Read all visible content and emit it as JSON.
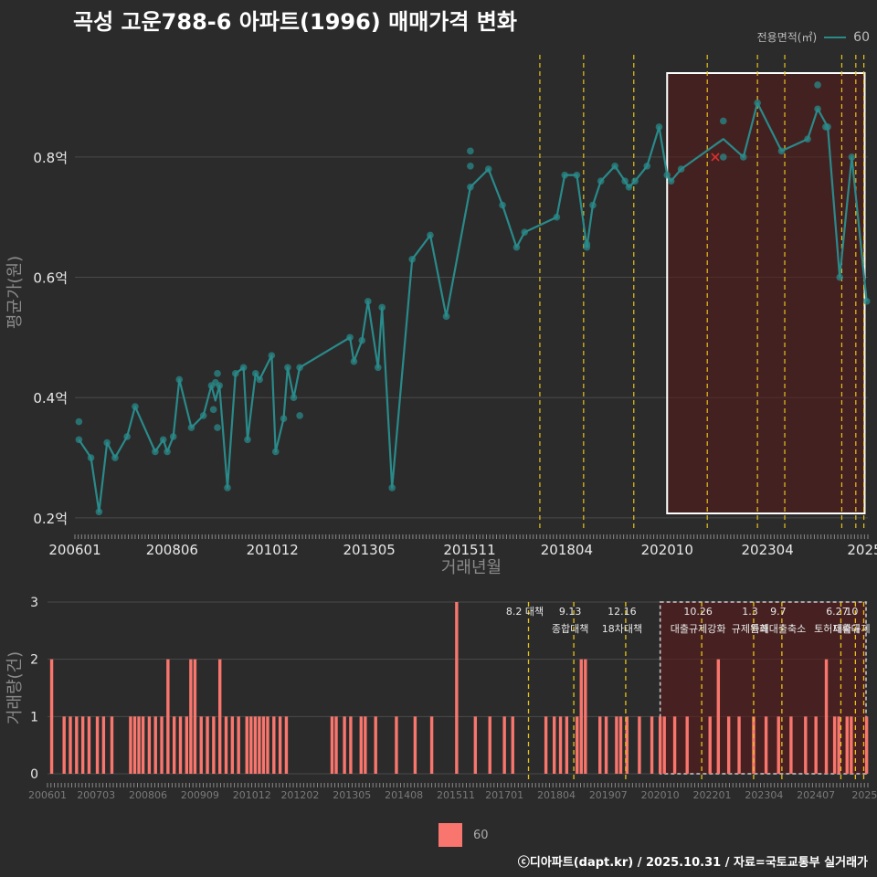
{
  "title": "곡성 고운788-6 아파트(1996) 매매가격 변화",
  "legend": {
    "title": "전용면적(㎡)",
    "items": [
      "60"
    ]
  },
  "caption": "ⓒ디아파트(dapt.kr) / 2025.10.31 / 자료=국토교통부 실거래가",
  "colors": {
    "line": "#2a8a8a",
    "bar": "#f8766d",
    "policy": "#e8c21a",
    "highlight": "#5a1a1a"
  },
  "chart_data": [
    {
      "type": "line",
      "name": "price",
      "xlabel": "거래년월",
      "ylabel": "평균가(원)",
      "ylim": [
        0.18,
        0.97
      ],
      "yticks": [
        0.2,
        0.4,
        0.6,
        0.8
      ],
      "ytick_labels": [
        "0.2억",
        "0.4억",
        "0.6억",
        "0.8억"
      ],
      "xlim": [
        2006.0,
        2025.75
      ],
      "xticks": [
        2006.0,
        2008.42,
        2010.92,
        2013.33,
        2015.83,
        2018.25,
        2020.75,
        2023.25,
        2025.67
      ],
      "xtick_labels": [
        "200601",
        "200806",
        "201012",
        "201305",
        "201511",
        "201804",
        "202010",
        "202304",
        "2025"
      ],
      "policy_lines": [
        2017.58,
        2018.67,
        2019.92,
        2021.75,
        2023.0,
        2023.68,
        2025.1,
        2025.45,
        2025.65
      ],
      "highlight_range": [
        2020.75,
        2025.67
      ],
      "series": [
        {
          "name": "60",
          "x": [
            2006.1,
            2006.4,
            2006.6,
            2006.8,
            2007.0,
            2007.3,
            2007.5,
            2008.0,
            2008.2,
            2008.3,
            2008.45,
            2008.6,
            2008.9,
            2009.2,
            2009.4,
            2009.5,
            2009.6,
            2009.8,
            2010.0,
            2010.2,
            2010.3,
            2010.5,
            2010.6,
            2010.9,
            2011.0,
            2011.2,
            2011.3,
            2011.45,
            2011.6,
            2012.85,
            2012.95,
            2013.15,
            2013.3,
            2013.55,
            2013.65,
            2013.9,
            2014.4,
            2014.85,
            2015.25,
            2015.85,
            2016.3,
            2016.65,
            2017.0,
            2017.2,
            2018.0,
            2018.2,
            2018.5,
            2018.75,
            2018.9,
            2019.1,
            2019.45,
            2019.7,
            2019.8,
            2019.95,
            2020.25,
            2020.55,
            2020.75,
            2020.85,
            2021.1,
            2022.15,
            2022.65,
            2023.0,
            2023.6,
            2024.25,
            2024.5,
            2024.75,
            2025.05,
            2025.35,
            2025.72
          ],
          "y": [
            0.33,
            0.3,
            0.21,
            0.325,
            0.3,
            0.335,
            0.385,
            0.31,
            0.33,
            0.31,
            0.335,
            0.43,
            0.35,
            0.37,
            0.42,
            0.395,
            0.42,
            0.25,
            0.44,
            0.45,
            0.33,
            0.44,
            0.43,
            0.47,
            0.31,
            0.365,
            0.45,
            0.4,
            0.45,
            0.5,
            0.46,
            0.495,
            0.56,
            0.45,
            0.55,
            0.25,
            0.63,
            0.67,
            0.535,
            0.75,
            0.78,
            0.72,
            0.65,
            0.675,
            0.7,
            0.77,
            0.77,
            0.65,
            0.72,
            0.76,
            0.785,
            0.76,
            0.75,
            0.76,
            0.785,
            0.85,
            0.77,
            0.76,
            0.78,
            0.83,
            0.8,
            0.89,
            0.81,
            0.83,
            0.88,
            0.85,
            0.6,
            0.8,
            0.56
          ]
        }
      ],
      "scatter": {
        "x": [
          2006.1,
          2006.1,
          2006.4,
          2006.6,
          2006.8,
          2007.0,
          2007.3,
          2007.5,
          2008.0,
          2008.2,
          2008.3,
          2008.45,
          2008.6,
          2008.9,
          2009.2,
          2009.4,
          2009.45,
          2009.5,
          2009.55,
          2009.55,
          2009.6,
          2009.8,
          2010.0,
          2010.2,
          2010.3,
          2010.5,
          2010.6,
          2010.9,
          2011.0,
          2011.2,
          2011.3,
          2011.45,
          2011.6,
          2011.6,
          2012.85,
          2012.95,
          2013.15,
          2013.3,
          2013.55,
          2013.65,
          2013.9,
          2014.4,
          2014.85,
          2015.25,
          2015.85,
          2015.85,
          2015.85,
          2016.3,
          2016.65,
          2017.0,
          2017.2,
          2018.0,
          2018.2,
          2018.5,
          2018.75,
          2018.75,
          2018.9,
          2019.1,
          2019.45,
          2019.7,
          2019.8,
          2019.95,
          2020.25,
          2020.55,
          2020.75,
          2020.85,
          2021.1,
          2022.15,
          2022.15,
          2022.65,
          2023.0,
          2023.6,
          2024.25,
          2024.5,
          2024.5,
          2024.7,
          2024.75,
          2025.05,
          2025.35,
          2025.72
        ],
        "y": [
          0.33,
          0.36,
          0.3,
          0.21,
          0.325,
          0.3,
          0.335,
          0.385,
          0.31,
          0.33,
          0.31,
          0.335,
          0.43,
          0.35,
          0.37,
          0.42,
          0.38,
          0.425,
          0.44,
          0.35,
          0.42,
          0.25,
          0.44,
          0.45,
          0.33,
          0.44,
          0.43,
          0.47,
          0.31,
          0.365,
          0.45,
          0.4,
          0.45,
          0.37,
          0.5,
          0.46,
          0.495,
          0.56,
          0.45,
          0.55,
          0.25,
          0.63,
          0.67,
          0.535,
          0.75,
          0.81,
          0.785,
          0.78,
          0.72,
          0.65,
          0.675,
          0.7,
          0.77,
          0.77,
          0.65,
          0.655,
          0.72,
          0.76,
          0.785,
          0.76,
          0.75,
          0.76,
          0.785,
          0.85,
          0.77,
          0.76,
          0.78,
          0.8,
          0.86,
          0.8,
          0.89,
          0.81,
          0.83,
          0.88,
          0.92,
          0.85,
          0.85,
          0.6,
          0.8,
          0.56
        ]
      },
      "marker_x": {
        "x": 2021.95,
        "y": 0.8
      }
    },
    {
      "type": "bar",
      "name": "volume",
      "xlabel": "",
      "ylabel": "거래량(건)",
      "ylim": [
        0,
        3
      ],
      "yticks": [
        0,
        1,
        2,
        3
      ],
      "ytick_labels": [
        "0",
        "1",
        "2",
        "3"
      ],
      "xlim": [
        2006.0,
        2025.75
      ],
      "xticks": [
        2006.0,
        2007.17,
        2008.42,
        2009.67,
        2010.92,
        2012.08,
        2013.33,
        2014.58,
        2015.83,
        2017.0,
        2018.25,
        2019.5,
        2020.75,
        2022.0,
        2023.25,
        2024.5,
        2025.67
      ],
      "xtick_labels": [
        "200601",
        "200703",
        "200806",
        "200909",
        "201012",
        "201202",
        "201305",
        "201408",
        "201511",
        "201701",
        "201804",
        "201907",
        "202010",
        "202201",
        "202304",
        "202407",
        "2025"
      ],
      "highlight_range": [
        2020.75,
        2025.75
      ],
      "policies": [
        {
          "x": 2017.58,
          "line1": "8.2 대책",
          "line2": ""
        },
        {
          "x": 2018.67,
          "line1": "9.13",
          "line2": "종합대책"
        },
        {
          "x": 2019.92,
          "line1": "12.16",
          "line2": "18차대책"
        },
        {
          "x": 2021.75,
          "line1": "10.26",
          "line2": "대출규제강화"
        },
        {
          "x": 2023.0,
          "line1": "1.3",
          "line2": "규제완화"
        },
        {
          "x": 2023.68,
          "line1": "9.7",
          "line2": "특례대출축소"
        },
        {
          "x": 2025.1,
          "line1": "6.27",
          "line2": "토허제확대"
        },
        {
          "x": 2025.45,
          "line1": "10",
          "line2": "대출규제"
        },
        {
          "x": 2025.65,
          "line1": "",
          "line2": ""
        }
      ],
      "x": [
        2006.1,
        2006.4,
        2006.55,
        2006.7,
        2006.85,
        2007.0,
        2007.2,
        2007.35,
        2007.55,
        2008.0,
        2008.1,
        2008.2,
        2008.3,
        2008.45,
        2008.6,
        2008.75,
        2008.9,
        2009.05,
        2009.2,
        2009.35,
        2009.45,
        2009.55,
        2009.7,
        2009.85,
        2010.0,
        2010.15,
        2010.3,
        2010.45,
        2010.6,
        2010.8,
        2010.9,
        2011.0,
        2011.1,
        2011.2,
        2011.3,
        2011.45,
        2011.6,
        2011.75,
        2012.85,
        2012.95,
        2013.15,
        2013.3,
        2013.55,
        2013.65,
        2013.9,
        2014.4,
        2014.85,
        2015.25,
        2015.85,
        2016.3,
        2016.65,
        2017.0,
        2017.2,
        2018.0,
        2018.2,
        2018.35,
        2018.5,
        2018.75,
        2018.85,
        2018.95,
        2019.3,
        2019.45,
        2019.7,
        2019.8,
        2019.95,
        2020.25,
        2020.55,
        2020.75,
        2020.85,
        2021.1,
        2021.4,
        2021.95,
        2022.15,
        2022.4,
        2022.65,
        2023.0,
        2023.3,
        2023.6,
        2023.9,
        2024.25,
        2024.5,
        2024.75,
        2024.95,
        2025.05,
        2025.25,
        2025.35,
        2025.72
      ],
      "values": [
        2,
        1,
        1,
        1,
        1,
        1,
        1,
        1,
        1,
        1,
        1,
        1,
        1,
        1,
        1,
        1,
        2,
        1,
        1,
        1,
        2,
        2,
        1,
        1,
        1,
        2,
        1,
        1,
        1,
        1,
        1,
        1,
        1,
        1,
        1,
        1,
        1,
        1,
        1,
        1,
        1,
        1,
        1,
        1,
        1,
        1,
        1,
        1,
        3,
        1,
        1,
        1,
        1,
        1,
        1,
        1,
        1,
        1,
        2,
        2,
        1,
        1,
        1,
        1,
        1,
        1,
        1,
        1,
        1,
        1,
        1,
        1,
        2,
        1,
        1,
        1,
        1,
        1,
        1,
        1,
        1,
        2,
        1,
        1,
        1,
        1,
        1
      ]
    }
  ]
}
